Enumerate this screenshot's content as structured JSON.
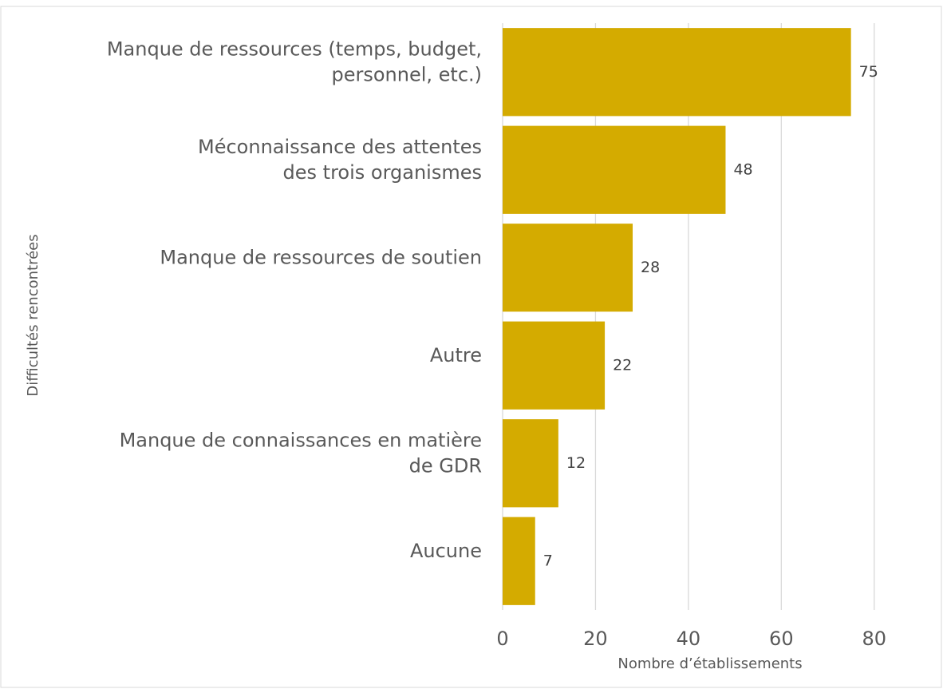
{
  "chart_data": {
    "type": "bar",
    "orientation": "horizontal",
    "categories": [
      [
        "Manque de ressources (temps, budget,",
        "personnel, etc.)"
      ],
      [
        "Méconnaissance des attentes",
        "des trois organismes"
      ],
      [
        "Manque de ressources de soutien"
      ],
      [
        "Autre"
      ],
      [
        "Manque de connaissances en matière",
        "de GDR"
      ],
      [
        "Aucune"
      ]
    ],
    "values": [
      75,
      48,
      28,
      22,
      12,
      7
    ],
    "color": "#d4ab00",
    "xlim": [
      0,
      90
    ],
    "xticks": [
      0,
      20,
      40,
      60,
      80
    ],
    "grid": true,
    "xlabel": "Nombre d’établissements",
    "ylabel": "Difficultés rencontrées"
  }
}
